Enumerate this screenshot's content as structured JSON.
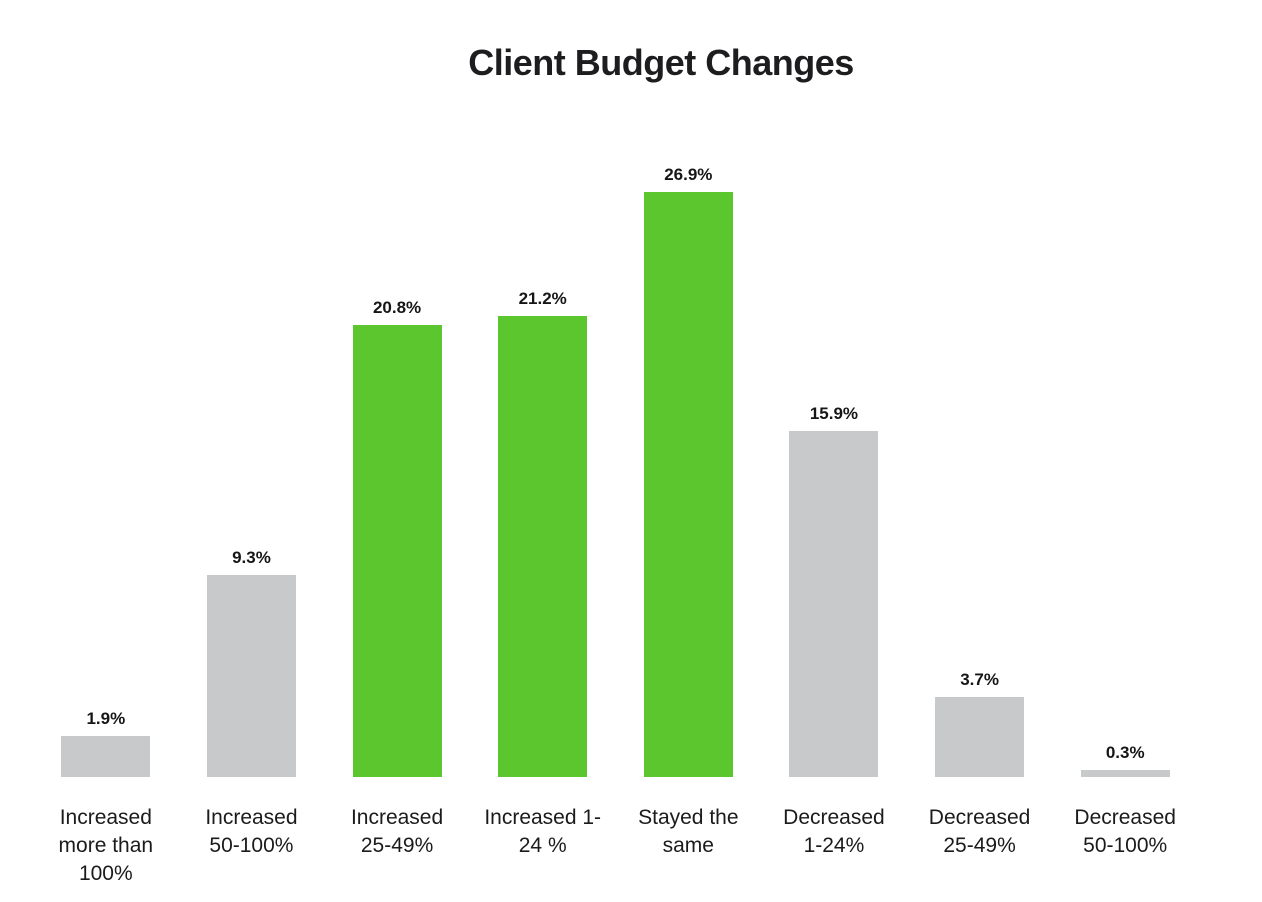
{
  "title": "Client Budget Changes",
  "palette": {
    "green": "#5bc62d",
    "gray": "#c8c9cb",
    "title_color": "#1d1d1f",
    "value_label_color": "#161616",
    "category_label_color": "#1b1b1b",
    "background": "#ffffff"
  },
  "chart_data": {
    "type": "bar",
    "title": "Client Budget Changes",
    "categories": [
      "Increased more than 100%",
      "Increased 50-100%",
      "Increased 25-49%",
      "Increased 1-24 %",
      "Stayed the same",
      "Decreased 1-24%",
      "Decreased 25-49%",
      "Decreased 50-100%"
    ],
    "values": [
      1.9,
      9.3,
      20.8,
      21.2,
      26.9,
      15.9,
      3.7,
      0.3
    ],
    "value_labels": [
      "1.9%",
      "9.3%",
      "20.8%",
      "21.2%",
      "26.9%",
      "15.9%",
      "3.7%",
      "0.3%"
    ],
    "bar_colors": [
      "gray",
      "gray",
      "green",
      "green",
      "green",
      "gray",
      "gray",
      "gray"
    ],
    "xlabel": "",
    "ylabel": "",
    "ylim": [
      0,
      26.9
    ],
    "grid": false,
    "legend": false,
    "axes_visible": false,
    "data_labels_position": "above-bar"
  }
}
